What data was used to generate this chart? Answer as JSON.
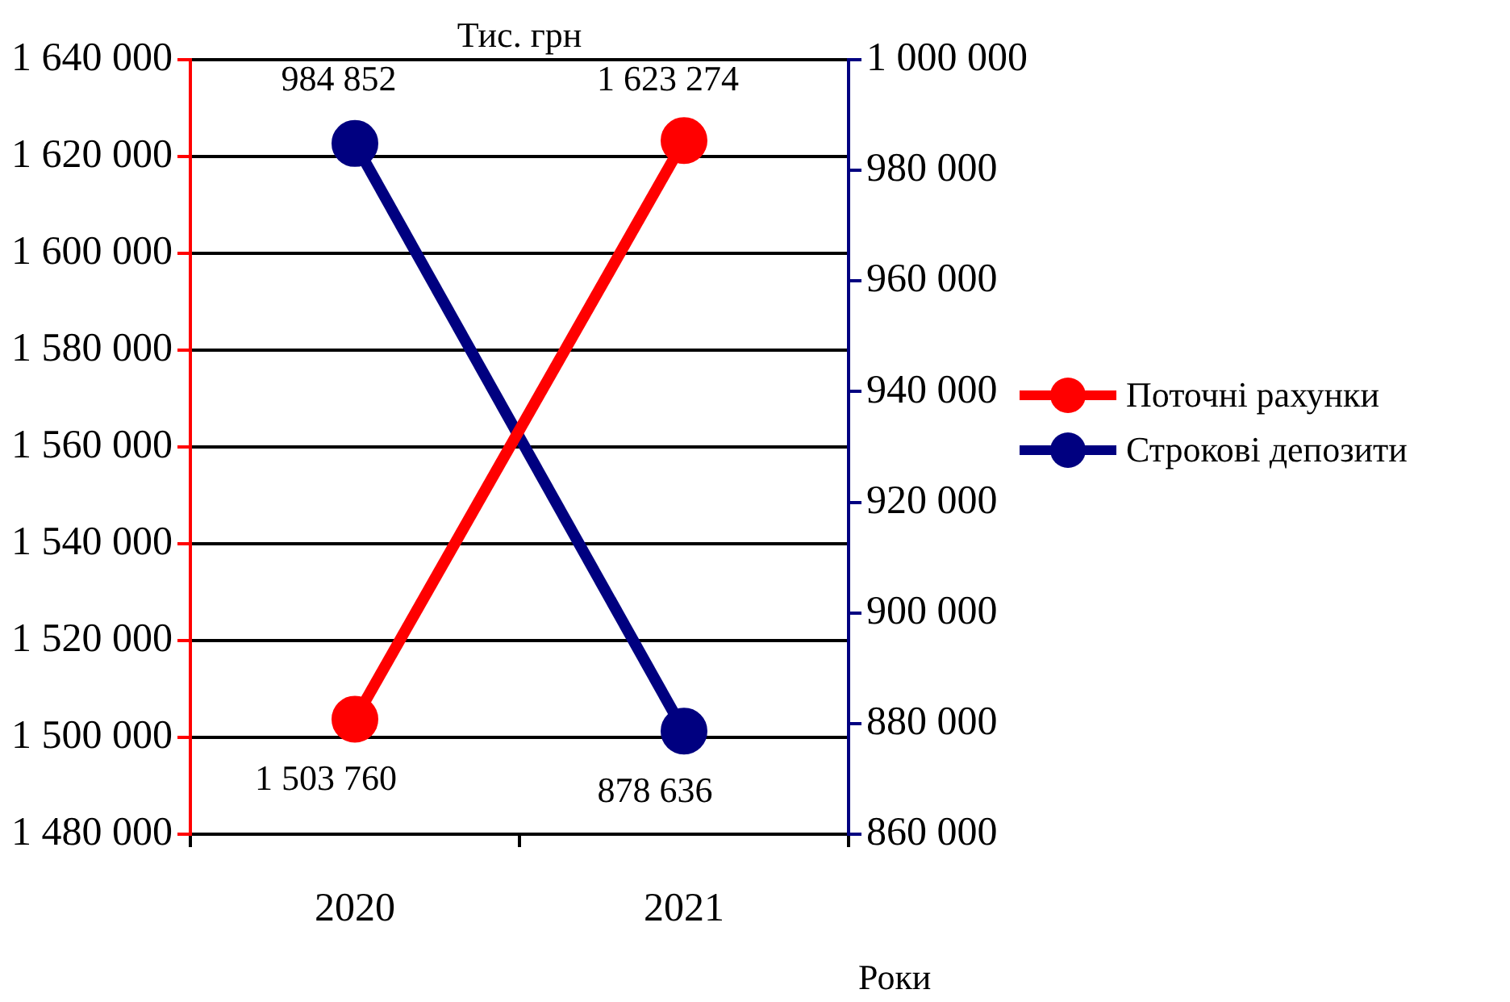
{
  "chart_data": {
    "type": "line",
    "title": "Тис. грн",
    "xlabel": "Роки",
    "categories": [
      "2020",
      "2021"
    ],
    "series": [
      {
        "name": "Поточні рахунки",
        "color": "#ff0000",
        "values": [
          1503760,
          1623274
        ],
        "value_labels": [
          "1 503 760",
          "1 623 274"
        ]
      },
      {
        "name": "Строкові депозити",
        "color": "#000080",
        "axis": "y2",
        "values": [
          984852,
          878636
        ],
        "value_labels": [
          "984 852",
          "878 636"
        ]
      }
    ],
    "ylim": [
      1480000,
      1640000
    ],
    "yticks": [
      {
        "value": 1480000,
        "label": "1 480 000"
      },
      {
        "value": 1500000,
        "label": "1 500 000"
      },
      {
        "value": 1520000,
        "label": "1 520 000"
      },
      {
        "value": 1540000,
        "label": "1 540 000"
      },
      {
        "value": 1560000,
        "label": "1 560 000"
      },
      {
        "value": 1580000,
        "label": "1 580 000"
      },
      {
        "value": 1600000,
        "label": "1 600 000"
      },
      {
        "value": 1620000,
        "label": "1 620 000"
      },
      {
        "value": 1640000,
        "label": "1 640 000"
      }
    ],
    "y2lim": [
      860000,
      1000000
    ],
    "y2ticks": [
      {
        "value": 860000,
        "label": "860 000"
      },
      {
        "value": 880000,
        "label": "880 000"
      },
      {
        "value": 900000,
        "label": "900 000"
      },
      {
        "value": 920000,
        "label": "920 000"
      },
      {
        "value": 940000,
        "label": "940 000"
      },
      {
        "value": 960000,
        "label": "960 000"
      },
      {
        "value": 980000,
        "label": "980 000"
      },
      {
        "value": 1000000,
        "label": "1 000 000"
      }
    ],
    "grid": "y",
    "legend": "right",
    "marker": "circle",
    "line_style": "solid"
  }
}
